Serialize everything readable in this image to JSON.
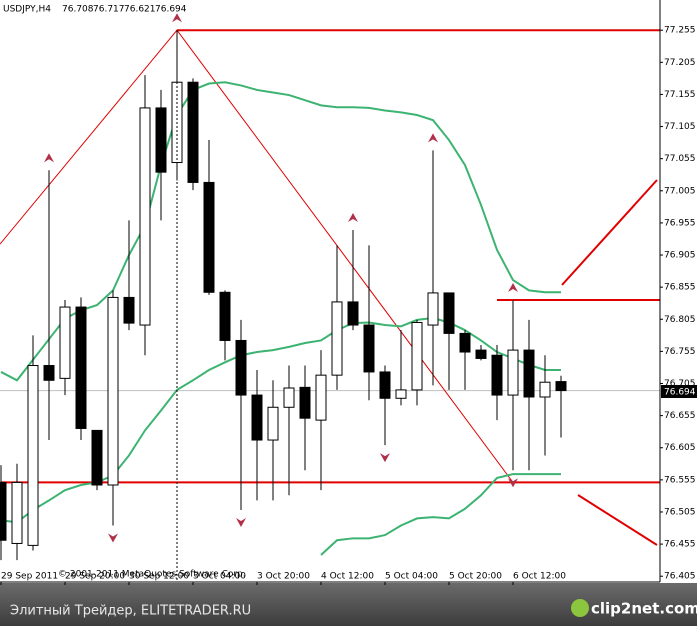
{
  "chart_data": {
    "type": "candlestick",
    "symbol": "USDJPY,H4",
    "copyright": "© 2001-2011 MetaQuotes Software Corp.",
    "footer": "Элитный Трейдер, ELITETRADER.RU",
    "logo": "clip2net.com",
    "categories": [
      "29 Sep 2011",
      null,
      null,
      null,
      "29 Sep 20:00",
      null,
      null,
      null,
      "30 Sep 12:00",
      null,
      null,
      null,
      "3 Oct 04:00",
      null,
      null,
      null,
      "3 Oct 20:00",
      null,
      null,
      null,
      "4 Oct 12:00",
      null,
      null,
      null,
      "5 Oct 04:00",
      null,
      null,
      null,
      "5 Oct 20:00",
      null,
      null,
      null,
      "6 Oct 12:00",
      null,
      null,
      null
    ],
    "candles": [
      {
        "open": 76.551,
        "high": 76.578,
        "low": 76.43,
        "close": 76.461
      },
      {
        "open": 76.456,
        "high": 76.58,
        "low": 76.43,
        "close": 76.551
      },
      {
        "open": 76.453,
        "high": 76.78,
        "low": 76.445,
        "close": 76.733
      },
      {
        "open": 76.733,
        "high": 77.037,
        "low": 76.617,
        "close": 76.71
      },
      {
        "open": 76.713,
        "high": 76.835,
        "low": 76.687,
        "close": 76.824
      },
      {
        "open": 76.824,
        "high": 76.839,
        "low": 76.617,
        "close": 76.635
      },
      {
        "open": 76.632,
        "high": 76.632,
        "low": 76.539,
        "close": 76.547
      },
      {
        "open": 76.547,
        "high": 76.85,
        "low": 76.484,
        "close": 76.839
      },
      {
        "open": 76.839,
        "high": 76.959,
        "low": 76.788,
        "close": 76.799
      },
      {
        "open": 76.796,
        "high": 77.185,
        "low": 76.749,
        "close": 77.134
      },
      {
        "open": 77.134,
        "high": 77.162,
        "low": 76.959,
        "close": 77.034
      },
      {
        "open": 77.049,
        "high": 77.255,
        "low": 77.021,
        "close": 77.174
      },
      {
        "open": 77.174,
        "high": 77.18,
        "low": 77.006,
        "close": 77.018
      },
      {
        "open": 77.018,
        "high": 77.084,
        "low": 76.843,
        "close": 76.847
      },
      {
        "open": 76.847,
        "high": 76.85,
        "low": 76.741,
        "close": 76.772
      },
      {
        "open": 76.772,
        "high": 76.804,
        "low": 76.508,
        "close": 76.687
      },
      {
        "open": 76.687,
        "high": 76.726,
        "low": 76.523,
        "close": 76.617
      },
      {
        "open": 76.617,
        "high": 76.71,
        "low": 76.523,
        "close": 76.668
      },
      {
        "open": 76.668,
        "high": 76.733,
        "low": 76.531,
        "close": 76.698
      },
      {
        "open": 76.699,
        "high": 76.733,
        "low": 76.57,
        "close": 76.651
      },
      {
        "open": 76.648,
        "high": 76.757,
        "low": 76.539,
        "close": 76.718
      },
      {
        "open": 76.718,
        "high": 76.92,
        "low": 76.695,
        "close": 76.832
      },
      {
        "open": 76.832,
        "high": 76.944,
        "low": 76.788,
        "close": 76.796
      },
      {
        "open": 76.796,
        "high": 76.92,
        "low": 76.679,
        "close": 76.723
      },
      {
        "open": 76.723,
        "high": 76.733,
        "low": 76.609,
        "close": 76.682
      },
      {
        "open": 76.682,
        "high": 76.788,
        "low": 76.671,
        "close": 76.695
      },
      {
        "open": 76.695,
        "high": 76.804,
        "low": 76.671,
        "close": 76.8
      },
      {
        "open": 76.796,
        "high": 77.068,
        "low": 76.702,
        "close": 76.846
      },
      {
        "open": 76.846,
        "high": 76.846,
        "low": 76.695,
        "close": 76.783
      },
      {
        "open": 76.783,
        "high": 76.788,
        "low": 76.695,
        "close": 76.754
      },
      {
        "open": 76.757,
        "high": 76.765,
        "low": 76.741,
        "close": 76.744
      },
      {
        "open": 76.749,
        "high": 76.765,
        "low": 76.648,
        "close": 76.687
      },
      {
        "open": 76.687,
        "high": 76.835,
        "low": 76.57,
        "close": 76.757
      },
      {
        "open": 76.757,
        "high": 76.804,
        "low": 76.57,
        "close": 76.684
      },
      {
        "open": 76.684,
        "high": 76.749,
        "low": 76.593,
        "close": 76.707
      },
      {
        "open": 76.708,
        "high": 76.717,
        "low": 76.621,
        "close": 76.694
      }
    ],
    "series": [
      {
        "color": "#3cb371",
        "values": [
          76.723,
          76.71,
          76.742,
          76.774,
          76.806,
          76.819,
          76.827,
          76.85,
          76.905,
          76.951,
          77.045,
          77.123,
          77.162,
          77.172,
          77.174,
          77.169,
          77.162,
          77.158,
          77.154,
          77.146,
          77.138,
          77.135,
          77.135,
          77.134,
          77.13,
          77.127,
          77.123,
          77.115,
          77.084,
          77.045,
          76.983,
          76.913,
          76.866,
          76.85,
          76.847,
          76.847
        ]
      },
      {
        "color": "#3cb371",
        "values": [
          76.492,
          76.489,
          76.508,
          76.523,
          76.539,
          76.547,
          76.551,
          76.562,
          76.593,
          76.632,
          76.663,
          76.695,
          76.71,
          76.726,
          76.738,
          76.749,
          76.754,
          76.757,
          76.762,
          76.768,
          76.772,
          76.788,
          76.799,
          76.8,
          76.796,
          76.794,
          76.804,
          76.807,
          76.8,
          76.788,
          76.772,
          76.754,
          76.744,
          76.734,
          76.726,
          76.726
        ]
      },
      {
        "color": "#3cb371",
        "values": [
          null,
          null,
          null,
          null,
          null,
          null,
          null,
          null,
          null,
          null,
          null,
          null,
          null,
          null,
          null,
          null,
          null,
          null,
          null,
          null,
          76.438,
          76.461,
          76.464,
          76.464,
          76.469,
          76.484,
          76.495,
          76.497,
          76.495,
          76.51,
          76.531,
          76.558,
          76.564,
          76.564,
          76.564,
          76.564
        ]
      }
    ],
    "zigzag": {
      "color": "#e00000",
      "points": [
        {
          "i": 0,
          "price": 76.922
        },
        {
          "i": 11,
          "price": 77.255
        },
        {
          "i": 32,
          "price": 76.551
        }
      ]
    },
    "levels": [
      {
        "price": 77.255,
        "from": 11
      },
      {
        "price": 76.551,
        "from": 0
      },
      {
        "price": 76.835,
        "from": 31
      }
    ],
    "fractals_up": [
      3,
      11,
      22,
      27,
      32
    ],
    "fractals_down": [
      7,
      15,
      24,
      32
    ],
    "ylim": [
      76.396,
      77.302
    ],
    "yticks": [
      77.255,
      77.205,
      77.155,
      77.105,
      77.055,
      77.005,
      76.955,
      76.905,
      76.855,
      76.805,
      76.755,
      76.705,
      76.655,
      76.605,
      76.555,
      76.505,
      76.455,
      76.405
    ]
  }
}
